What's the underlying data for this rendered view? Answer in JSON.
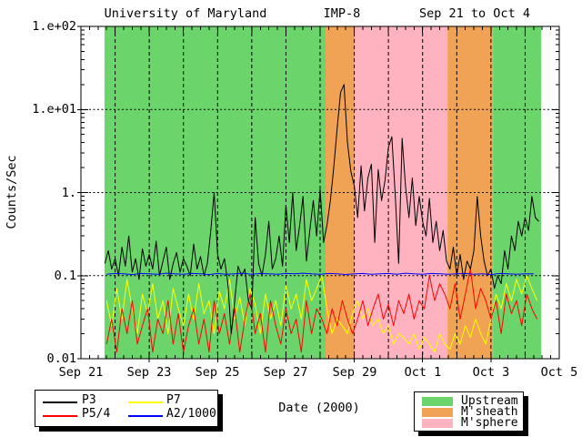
{
  "title": {
    "left": "University of Maryland",
    "center": "IMP-8",
    "right": "Sep 21 to Oct 4"
  },
  "axes": {
    "y": {
      "label": "Counts/Sec",
      "tick_labels": [
        "1.e+02",
        "1.e+01",
        "1.",
        "0.1",
        "0.01"
      ]
    },
    "x": {
      "label": "Date (2000)",
      "tick_labels": [
        "Sep 21",
        "Sep 23",
        "Sep 25",
        "Sep 27",
        "Sep 29",
        "Oct 1",
        "Oct 3",
        "Oct 5"
      ]
    }
  },
  "legend_series": {
    "items": [
      {
        "label": "P3",
        "color": "#000000"
      },
      {
        "label": "P5/4",
        "color": "#FF0000"
      },
      {
        "label": "P7",
        "color": "#FFFF00"
      },
      {
        "label": "A2/1000",
        "color": "#0000FF"
      }
    ]
  },
  "legend_regions": {
    "items": [
      {
        "label": "Upstream",
        "color": "#6BD56B"
      },
      {
        "label": "M'sheath",
        "color": "#F0A355"
      },
      {
        "label": "M'sphere",
        "color": "#FFB3C1"
      }
    ]
  },
  "chart_data": {
    "type": "line",
    "title": "University of Maryland  IMP-8  Sep 21 to Oct 4",
    "xlabel": "Date (2000)",
    "ylabel": "Counts/Sec",
    "x_axis": {
      "unit": "days since Sep 21 2000 00:00",
      "range": [
        0,
        14
      ],
      "labeled_days": [
        0,
        2,
        4,
        6,
        8,
        10,
        12,
        14
      ],
      "day_gridlines": [
        1,
        2,
        3,
        4,
        5,
        6,
        7,
        8,
        9,
        10,
        11,
        12,
        13
      ]
    },
    "y_axis": {
      "scale": "log",
      "range": [
        0.01,
        100
      ],
      "gridlines": [
        0.1,
        1,
        10
      ]
    },
    "regions": [
      {
        "label": "Upstream",
        "color": "#6BD56B",
        "t_start": 0.69,
        "t_end": 7.16
      },
      {
        "label": "M'sheath",
        "color": "#F0A355",
        "t_start": 7.16,
        "t_end": 8.02
      },
      {
        "label": "M'sphere",
        "color": "#FFB3C1",
        "t_start": 8.02,
        "t_end": 10.73
      },
      {
        "label": "M'sheath",
        "color": "#F0A355",
        "t_start": 10.73,
        "t_end": 12.06
      },
      {
        "label": "Upstream",
        "color": "#6BD56B",
        "t_start": 12.06,
        "t_end": 13.47
      }
    ],
    "series": [
      {
        "name": "P7",
        "color": "#FFFF00",
        "t0": 0.75,
        "dt": 0.15,
        "values": [
          0.05,
          0.025,
          0.07,
          0.03,
          0.09,
          0.04,
          0.02,
          0.06,
          0.035,
          0.08,
          0.03,
          0.05,
          0.02,
          0.07,
          0.04,
          0.025,
          0.06,
          0.03,
          0.08,
          0.035,
          0.05,
          0.02,
          0.065,
          0.04,
          0.09,
          0.03,
          0.055,
          0.025,
          0.07,
          0.045,
          0.02,
          0.06,
          0.03,
          0.05,
          0.025,
          0.075,
          0.04,
          0.06,
          0.03,
          0.09,
          0.05,
          0.07,
          0.1,
          0.04,
          0.02,
          0.03,
          0.025,
          0.02,
          0.035,
          0.05,
          0.03,
          0.04,
          0.025,
          0.03,
          0.02,
          0.025,
          0.015,
          0.02,
          0.018,
          0.015,
          0.02,
          0.013,
          0.018,
          0.015,
          0.012,
          0.02,
          0.015,
          0.013,
          0.02,
          0.015,
          0.025,
          0.018,
          0.03,
          0.02,
          0.015,
          0.03,
          0.06,
          0.04,
          0.08,
          0.05,
          0.09,
          0.06,
          0.1,
          0.07,
          0.05
        ]
      },
      {
        "name": "P5/4",
        "color": "#FF0000",
        "t0": 0.75,
        "dt": 0.15,
        "values": [
          0.015,
          0.03,
          0.012,
          0.04,
          0.02,
          0.05,
          0.015,
          0.025,
          0.04,
          0.012,
          0.03,
          0.02,
          0.05,
          0.015,
          0.035,
          0.012,
          0.025,
          0.04,
          0.015,
          0.03,
          0.012,
          0.05,
          0.02,
          0.035,
          0.015,
          0.04,
          0.012,
          0.03,
          0.06,
          0.02,
          0.035,
          0.012,
          0.05,
          0.025,
          0.015,
          0.04,
          0.02,
          0.03,
          0.012,
          0.05,
          0.02,
          0.04,
          0.03,
          0.02,
          0.04,
          0.025,
          0.05,
          0.03,
          0.02,
          0.03,
          0.05,
          0.025,
          0.04,
          0.06,
          0.03,
          0.045,
          0.025,
          0.05,
          0.035,
          0.06,
          0.03,
          0.05,
          0.04,
          0.1,
          0.05,
          0.08,
          0.06,
          0.04,
          0.08,
          0.03,
          0.06,
          0.12,
          0.04,
          0.07,
          0.05,
          0.03,
          0.05,
          0.02,
          0.06,
          0.035,
          0.05,
          0.025,
          0.06,
          0.04,
          0.03
        ]
      },
      {
        "name": "P3",
        "color": "#000000",
        "t0": 0.7,
        "dt": 0.1,
        "values": [
          0.14,
          0.2,
          0.12,
          0.16,
          0.1,
          0.22,
          0.13,
          0.3,
          0.11,
          0.16,
          0.09,
          0.21,
          0.13,
          0.18,
          0.12,
          0.26,
          0.1,
          0.15,
          0.22,
          0.09,
          0.14,
          0.19,
          0.11,
          0.16,
          0.13,
          0.1,
          0.24,
          0.12,
          0.17,
          0.1,
          0.14,
          0.35,
          1.0,
          0.18,
          0.12,
          0.16,
          0.08,
          0.02,
          0.05,
          0.13,
          0.1,
          0.12,
          0.05,
          0.04,
          0.5,
          0.14,
          0.1,
          0.18,
          0.45,
          0.12,
          0.16,
          0.3,
          0.13,
          0.7,
          0.25,
          1.0,
          0.2,
          0.4,
          0.9,
          0.15,
          0.35,
          0.8,
          0.3,
          1.1,
          0.25,
          0.4,
          0.8,
          2.0,
          6.0,
          16.0,
          20.0,
          4.0,
          1.8,
          1.2,
          0.5,
          2.1,
          0.6,
          1.5,
          2.2,
          0.25,
          1.9,
          0.8,
          1.4,
          3.5,
          4.7,
          0.9,
          0.14,
          4.5,
          1.2,
          0.5,
          1.5,
          0.4,
          0.9,
          0.45,
          0.3,
          0.85,
          0.25,
          0.45,
          0.2,
          0.35,
          0.15,
          0.12,
          0.22,
          0.1,
          0.18,
          0.09,
          0.15,
          0.12,
          0.2,
          0.9,
          0.3,
          0.15,
          0.1,
          0.12,
          0.07,
          0.1,
          0.08,
          0.2,
          0.12,
          0.3,
          0.2,
          0.45,
          0.3,
          0.5,
          0.35,
          0.9,
          0.5,
          0.45
        ]
      },
      {
        "name": "A2/1000",
        "color": "#0000FF",
        "t0": 0.75,
        "dt": 0.25,
        "values": [
          0.104,
          0.106,
          0.105,
          0.103,
          0.106,
          0.105,
          0.104,
          0.107,
          0.105,
          0.104,
          0.106,
          0.105,
          0.103,
          0.106,
          0.104,
          0.105,
          0.107,
          0.104,
          0.106,
          0.105,
          0.104,
          0.106,
          0.105,
          0.107,
          0.105,
          0.104,
          0.106,
          0.105,
          0.103,
          0.105,
          0.106,
          0.104,
          0.105,
          0.106,
          0.104,
          0.107,
          0.105,
          0.104,
          0.106,
          0.105,
          0.104,
          0.105,
          0.106,
          0.104,
          0.105,
          0.103,
          0.106,
          0.105,
          0.104,
          0.105,
          0.105
        ]
      }
    ]
  }
}
